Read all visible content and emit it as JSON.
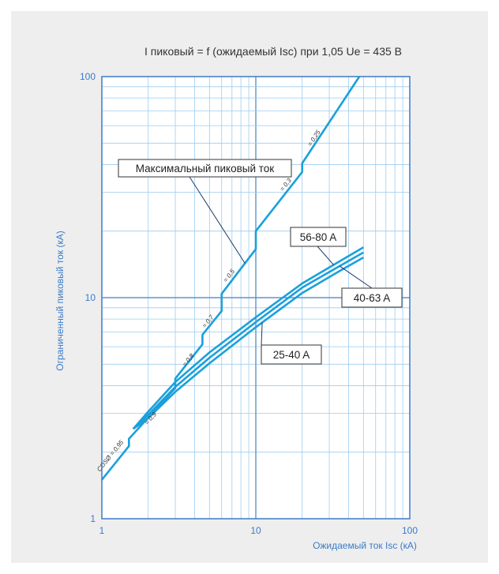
{
  "chart_data": {
    "type": "line",
    "title": "I пиковый = f (ожидаемый Isc) при 1,05 Ue = 435 В",
    "xlabel": "Ожидаемый ток Isc (кА)",
    "ylabel": "Ограниченный пиковый ток (кА)",
    "x_scale": "log",
    "y_scale": "log",
    "xlim": [
      1,
      100
    ],
    "ylim": [
      1,
      100
    ],
    "x_ticks": [
      1,
      10,
      100
    ],
    "y_ticks": [
      1,
      10,
      100
    ],
    "x_tick_labels": [
      "1",
      "10",
      "100"
    ],
    "y_tick_labels": [
      "1",
      "10",
      "100"
    ],
    "grid": true,
    "colors": {
      "curve": "#1aa0dc",
      "axis": "#3a7bc8",
      "grid": "#9ecbee",
      "callout_line": "#1a3a6a"
    },
    "series": [
      {
        "name": "Максимальный пиковый ток",
        "x": [
          1,
          1.5,
          1.5,
          3,
          3,
          4.5,
          4.5,
          6,
          6,
          10,
          10,
          20,
          20,
          47
        ],
        "y": [
          1.5,
          2.13,
          2.3,
          3.9,
          4.3,
          6.15,
          6.8,
          8.7,
          10.4,
          16.6,
          20.0,
          37.0,
          40.5,
          100
        ]
      },
      {
        "name": "56-80 A",
        "x": [
          1.6,
          2,
          3,
          5,
          10,
          20,
          35,
          50
        ],
        "y": [
          2.55,
          3.05,
          4.15,
          5.65,
          8.15,
          11.6,
          14.6,
          16.9
        ]
      },
      {
        "name": "40-63 A",
        "x": [
          1.6,
          2,
          3,
          5,
          10,
          20,
          35,
          50
        ],
        "y": [
          2.55,
          2.95,
          3.95,
          5.35,
          7.75,
          11.1,
          13.9,
          16.0
        ]
      },
      {
        "name": "25-40 A",
        "x": [
          1.6,
          2,
          3,
          5,
          10,
          20,
          35,
          50
        ],
        "y": [
          2.55,
          2.85,
          3.75,
          5.05,
          7.35,
          10.5,
          13.2,
          15.2
        ]
      }
    ],
    "curve_labels": [
      {
        "text": "COSØ = 0,95",
        "x": 1.16,
        "y": 1.9
      },
      {
        "text": "= 0,9",
        "x": 2.12,
        "y": 2.8
      },
      {
        "text": "= 0,8",
        "x": 3.72,
        "y": 5.15
      },
      {
        "text": "= 0,7",
        "x": 5.0,
        "y": 7.7
      },
      {
        "text": "= 0,5",
        "x": 6.85,
        "y": 12.4
      },
      {
        "text": "= 0,3",
        "x": 16.0,
        "y": 32.0
      },
      {
        "text": "= 0,25",
        "x": 24.5,
        "y": 52.0
      }
    ],
    "callouts": [
      {
        "text": "Максимальный пиковый ток",
        "series": "Максимальный пиковый ток"
      },
      {
        "text": "56-80 A",
        "series": "56-80 A"
      },
      {
        "text": "40-63 A",
        "series": "40-63 A"
      },
      {
        "text": "25-40 A",
        "series": "25-40 A"
      }
    ]
  }
}
